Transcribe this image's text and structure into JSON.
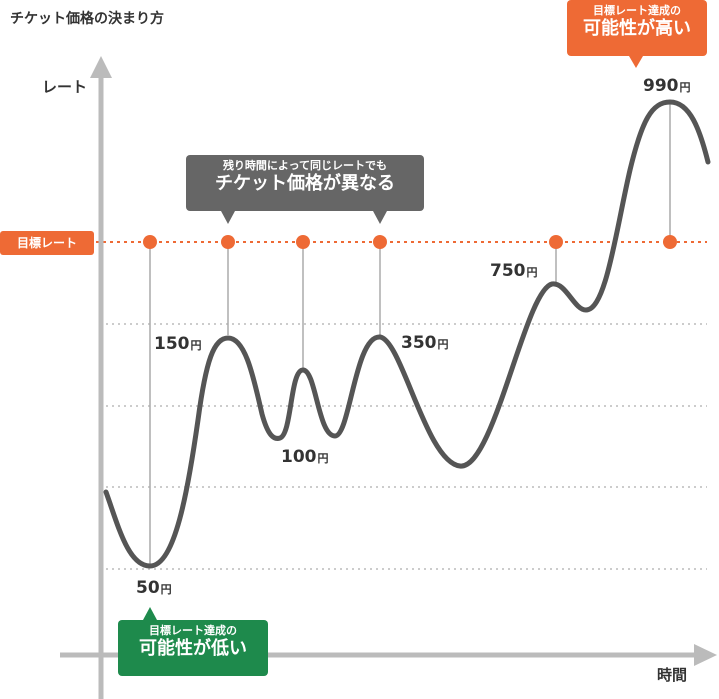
{
  "title": "チケット価格の決まり方",
  "y_axis_label": "レート",
  "x_axis_label": "時間",
  "target_label": "目標レート",
  "callouts": {
    "high": {
      "line1": "目標レート達成の",
      "line2": "可能性が高い"
    },
    "same": {
      "line1": "残り時間によって同じレートでも",
      "line2": "チケット価格が異なる"
    },
    "low": {
      "line1": "目標レート達成の",
      "line2": "可能性が低い"
    }
  },
  "yen": "円",
  "colors": {
    "curve": "#555555",
    "accent": "#ee6a35",
    "gray_callout": "#666666",
    "green_callout": "#1e8a4c",
    "axis": "#bbbbbb",
    "grid": "#cccccc"
  },
  "chart_data": {
    "type": "line",
    "title": "チケット価格の決まり方",
    "ylabel": "レート",
    "xlabel": "時間",
    "grid": true,
    "target_line": "目標レート",
    "price_points": [
      {
        "price": "50",
        "unit": "円"
      },
      {
        "price": "150",
        "unit": "円"
      },
      {
        "price": "100",
        "unit": "円"
      },
      {
        "price": "350",
        "unit": "円"
      },
      {
        "price": "750",
        "unit": "円"
      },
      {
        "price": "990",
        "unit": "円"
      }
    ]
  }
}
